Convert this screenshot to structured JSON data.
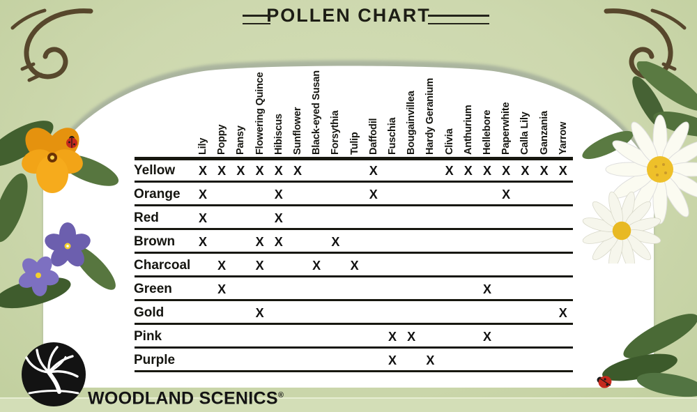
{
  "title": "POLLEN CHART",
  "brand": {
    "name": "WOODLAND SCENICS",
    "registered_mark": "®"
  },
  "chart_data": {
    "type": "table",
    "title": "POLLEN CHART",
    "mark_symbol": "X",
    "columns": [
      "Lily",
      "Poppy",
      "Pansy",
      "Flowering Quince",
      "Hibiscus",
      "Sunflower",
      "Black-eyed Susan",
      "Forsythia",
      "Tulip",
      "Daffodil",
      "Fuschia",
      "Bougainvillea",
      "Hardy Geranium",
      "Clivia",
      "Anthurium",
      "Hellebore",
      "Paperwhite",
      "Calla Lily",
      "Ganzania",
      "Yarrow"
    ],
    "rows": [
      {
        "label": "Yellow",
        "marks": [
          "Lily",
          "Poppy",
          "Pansy",
          "Flowering Quince",
          "Hibiscus",
          "Sunflower",
          "Daffodil",
          "Clivia",
          "Anthurium",
          "Hellebore",
          "Paperwhite",
          "Calla Lily",
          "Ganzania",
          "Yarrow"
        ]
      },
      {
        "label": "Orange",
        "marks": [
          "Lily",
          "Hibiscus",
          "Daffodil",
          "Paperwhite"
        ]
      },
      {
        "label": "Red",
        "marks": [
          "Lily",
          "Hibiscus"
        ]
      },
      {
        "label": "Brown",
        "marks": [
          "Lily",
          "Flowering Quince",
          "Hibiscus",
          "Forsythia"
        ]
      },
      {
        "label": "Charcoal",
        "marks": [
          "Poppy",
          "Flowering Quince",
          "Black-eyed Susan",
          "Tulip"
        ]
      },
      {
        "label": "Green",
        "marks": [
          "Poppy",
          "Hellebore"
        ]
      },
      {
        "label": "Gold",
        "marks": [
          "Flowering Quince",
          "Yarrow"
        ]
      },
      {
        "label": "Pink",
        "marks": [
          "Fuschia",
          "Bougainvillea",
          "Hellebore"
        ]
      },
      {
        "label": "Purple",
        "marks": [
          "Fuschia",
          "Hardy Geranium"
        ]
      }
    ],
    "legend_position": "none",
    "grid": "horizontal-rules"
  },
  "decorations": {
    "icons": [
      "corner-flourish-icon",
      "pansy-flower-icon",
      "violet-flower-icon",
      "daisy-flower-icon",
      "leaf-icon",
      "ladybug-icon",
      "tree-logo-icon"
    ]
  },
  "colors": {
    "background_green": "#cdd8ae",
    "panel_white": "#ffffff",
    "ink_black": "#17170f",
    "ornament_brown": "#4e3c22",
    "pansy_orange": "#f2a417",
    "violet_purple": "#6c5fae",
    "daisy_center_yellow": "#eec02a",
    "ladybug_red": "#c52a1d"
  }
}
